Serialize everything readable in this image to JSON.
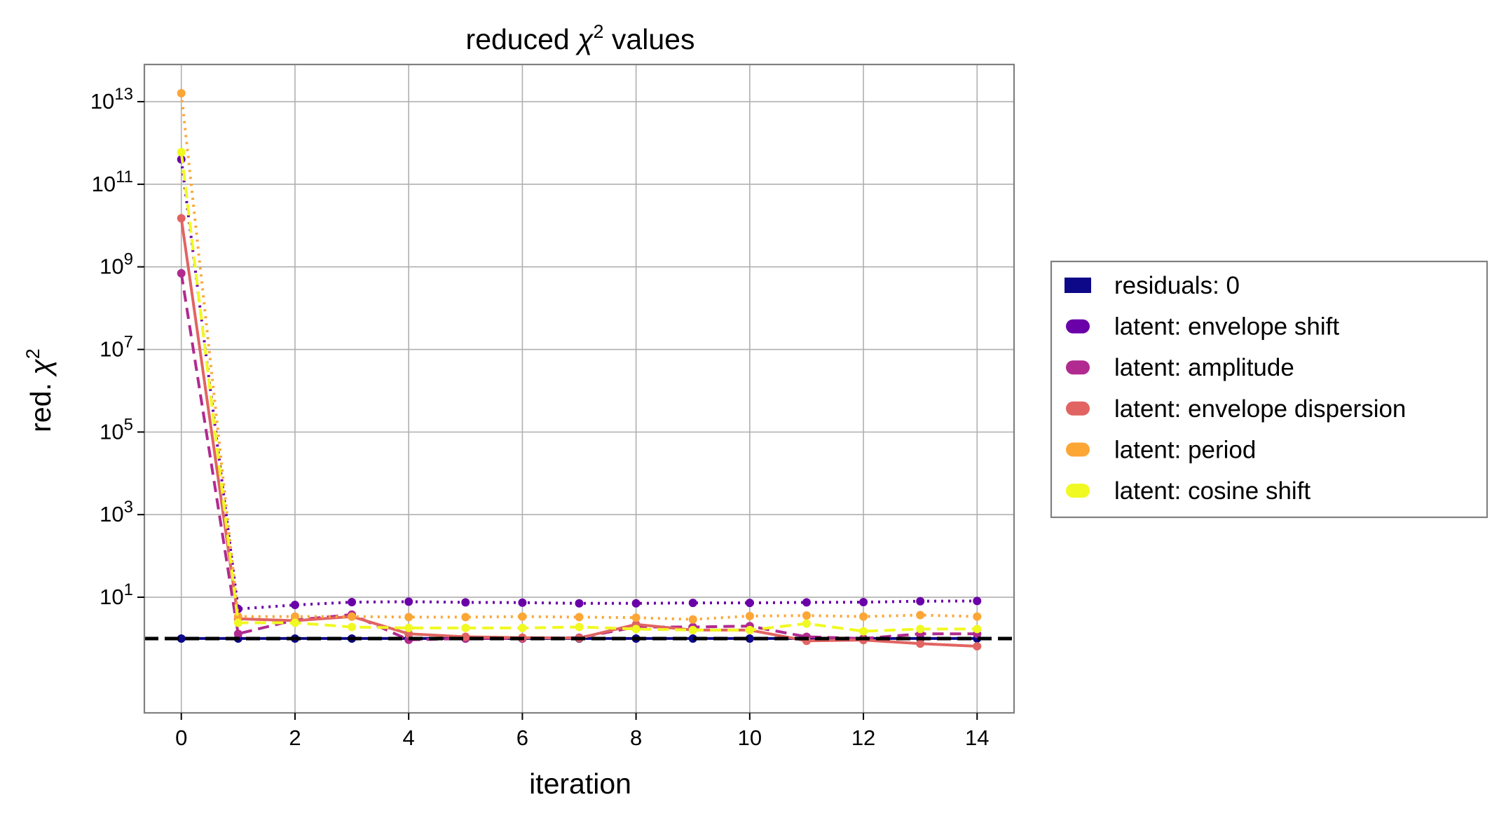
{
  "chart_data": {
    "type": "line",
    "title": "reduced χ² values",
    "xlabel": "iteration",
    "ylabel": "red. χ²",
    "yscale": "log",
    "xlim": [
      -0.65,
      14.65
    ],
    "ylim_log10": [
      -1.8,
      13.9
    ],
    "grid": true,
    "legend_placement": "outside right",
    "x": [
      0,
      1,
      2,
      3,
      4,
      5,
      6,
      7,
      8,
      9,
      10,
      11,
      12,
      13,
      14
    ],
    "x_ticks": [
      {
        "value": 0,
        "label": "0"
      },
      {
        "value": 2,
        "label": "2"
      },
      {
        "value": 4,
        "label": "4"
      },
      {
        "value": 6,
        "label": "6"
      },
      {
        "value": 8,
        "label": "8"
      },
      {
        "value": 10,
        "label": "10"
      },
      {
        "value": 12,
        "label": "12"
      },
      {
        "value": 14,
        "label": "14"
      }
    ],
    "y_ticks": [
      {
        "exp": 1,
        "base": "10",
        "sup": "1"
      },
      {
        "exp": 3,
        "base": "10",
        "sup": "3"
      },
      {
        "exp": 5,
        "base": "10",
        "sup": "5"
      },
      {
        "exp": 7,
        "base": "10",
        "sup": "7"
      },
      {
        "exp": 9,
        "base": "10",
        "sup": "9"
      },
      {
        "exp": 11,
        "base": "10",
        "sup": "11"
      },
      {
        "exp": 13,
        "base": "10",
        "sup": "13"
      }
    ],
    "reference_line": {
      "y": 1,
      "style": "dashed",
      "color": "#000000"
    },
    "series": [
      {
        "name": "residuals: 0",
        "color": "#0d0887",
        "dash": "solid",
        "values": [
          1,
          1,
          1,
          1,
          1,
          1,
          1,
          1,
          1,
          1,
          1,
          1,
          1,
          1,
          1
        ]
      },
      {
        "name": "latent: envelope shift",
        "color": "#6a00a8",
        "dash": "dotted",
        "values": [
          400000000000.0,
          5.2,
          6.5,
          7.6,
          7.8,
          7.5,
          7.4,
          7.1,
          7.1,
          7.3,
          7.3,
          7.5,
          7.6,
          8.0,
          8.1
        ]
      },
      {
        "name": "latent: amplitude",
        "color": "#b12a90",
        "dash": "dashed",
        "values": [
          700000000.0,
          1.3,
          2.8,
          3.8,
          0.93,
          1.0,
          1.0,
          1.05,
          1.9,
          1.9,
          2.0,
          1.1,
          1.0,
          1.3,
          1.3
        ]
      },
      {
        "name": "latent: envelope dispersion",
        "color": "#e16462",
        "dash": "solid",
        "values": [
          15000000000.0,
          3.0,
          2.7,
          3.4,
          1.3,
          1.1,
          1.05,
          1.02,
          2.2,
          1.6,
          1.6,
          0.88,
          0.92,
          0.75,
          0.65
        ]
      },
      {
        "name": "latent: period",
        "color": "#fca636",
        "dash": "dotted",
        "values": [
          16000000000000.0,
          3.4,
          3.4,
          3.4,
          3.3,
          3.3,
          3.4,
          3.3,
          3.2,
          2.9,
          3.5,
          3.6,
          3.4,
          3.7,
          3.4
        ]
      },
      {
        "name": "latent: cosine shift",
        "color": "#f0f921",
        "dash": "dashed",
        "values": [
          600000000000.0,
          2.4,
          2.4,
          1.9,
          1.8,
          1.8,
          1.8,
          1.9,
          1.7,
          1.6,
          1.6,
          2.3,
          1.5,
          1.7,
          1.7
        ]
      }
    ]
  }
}
